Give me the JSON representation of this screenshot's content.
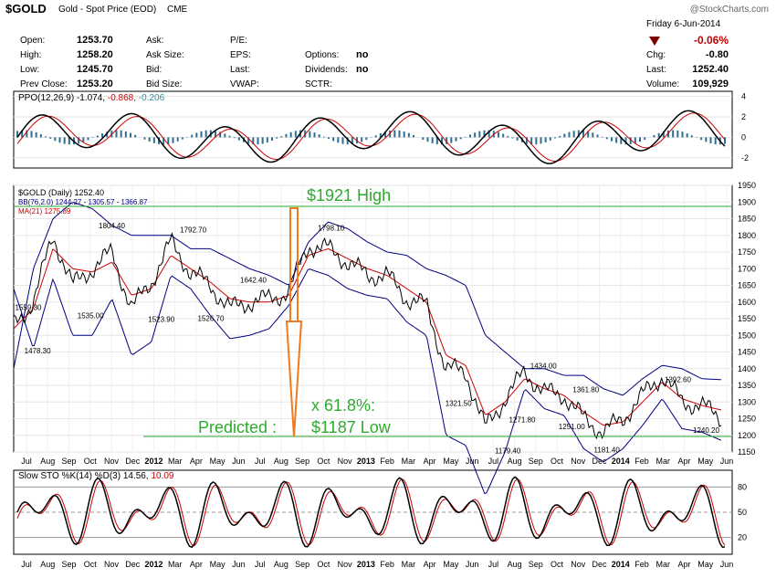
{
  "header": {
    "symbol": "$GOLD",
    "description": "Gold - Spot Price (EOD)",
    "exchange": "CME",
    "watermark": "@StockCharts.com",
    "date": "Friday  6-Jun-2014",
    "change_pct": "-0.06%",
    "quote": {
      "open_label": "Open:",
      "open": "1253.70",
      "high_label": "High:",
      "high": "1258.20",
      "low_label": "Low:",
      "low": "1245.70",
      "prev_close_label": "Prev Close:",
      "prev_close": "1253.20",
      "ask_label": "Ask:",
      "ask_size_label": "Ask Size:",
      "bid_label": "Bid:",
      "bid_size_label": "Bid Size:",
      "pe_label": "P/E:",
      "eps_label": "EPS:",
      "last_label_mid": "Last:",
      "vwap_label": "VWAP:",
      "options_label": "Options:",
      "options": "no",
      "dividends_label": "Dividends:",
      "dividends": "no",
      "sctr_label": "SCTR:",
      "chg_label": "Chg:",
      "chg": "-0.80",
      "last_label": "Last:",
      "last": "1252.40",
      "volume_label": "Volume:",
      "volume": "109,929"
    }
  },
  "colors": {
    "price": "#000000",
    "ma": "#cc0000",
    "bb": "#000080",
    "annotation": "#2eaa2e",
    "arrow": "#f07a20",
    "histogram": "#2e6e8e"
  },
  "ppo_legend": {
    "name": "PPO(12,26,9)",
    "v1": "-1.074,",
    "v2": "-0.868,",
    "v3": "-0.206"
  },
  "price_legend": {
    "l1": "$GOLD (Daily) 1252.40",
    "l2": "BB(76,2.0) 1244.27 - 1305.57 - 1366.87",
    "l3": "MA(21) 1275.89"
  },
  "sto_legend": {
    "name": "Slow STO %K(14) %D(3) 14.56,",
    "v": "10.09"
  },
  "annotations": {
    "high": "$1921 High",
    "ratio": "x 61.8%:",
    "predicted": "Predicted :",
    "low": "$1187 Low"
  },
  "x_axis_labels": [
    "Jul",
    "Aug",
    "Sep",
    "Oct",
    "Nov",
    "Dec",
    "2012",
    "Mar",
    "Apr",
    "May",
    "Jun",
    "Jul",
    "Aug",
    "Sep",
    "Oct",
    "Nov",
    "2013",
    "Feb",
    "Mar",
    "Apr",
    "May",
    "Jun",
    "Jul",
    "Aug",
    "Sep",
    "Oct",
    "Nov",
    "Dec",
    "2014",
    "Feb",
    "Mar",
    "Apr",
    "May",
    "Jun"
  ],
  "chart_data": [
    {
      "type": "line",
      "title": "$GOLD (Daily) 1252.40",
      "ylim": [
        1150,
        1950
      ],
      "y_ticks": [
        1150,
        1200,
        1250,
        1300,
        1350,
        1400,
        1450,
        1500,
        1550,
        1600,
        1650,
        1700,
        1750,
        1800,
        1850,
        1900,
        1950
      ],
      "series": [
        {
          "name": "$GOLD",
          "x": [
            "2011-06",
            "2011-07",
            "2011-08",
            "2011-09",
            "2011-10",
            "2011-11",
            "2011-12",
            "2012-01",
            "2012-02",
            "2012-03",
            "2012-04",
            "2012-05",
            "2012-06",
            "2012-07",
            "2012-08",
            "2012-09",
            "2012-10",
            "2012-11",
            "2012-12",
            "2013-01",
            "2013-02",
            "2013-03",
            "2013-04",
            "2013-05",
            "2013-06",
            "2013-07",
            "2013-08",
            "2013-09",
            "2013-10",
            "2013-11",
            "2013-12",
            "2014-01",
            "2014-02",
            "2014-03",
            "2014-04",
            "2014-05",
            "2014-06"
          ],
          "values": [
            1530,
            1600,
            1800,
            1650,
            1700,
            1750,
            1580,
            1660,
            1780,
            1690,
            1650,
            1580,
            1600,
            1610,
            1630,
            1770,
            1760,
            1720,
            1680,
            1680,
            1610,
            1590,
            1400,
            1390,
            1220,
            1310,
            1390,
            1330,
            1320,
            1250,
            1210,
            1250,
            1320,
            1380,
            1300,
            1290,
            1252
          ]
        },
        {
          "name": "BB(76,2.0)",
          "values": [
            1400,
            1700,
            1850,
            1900,
            1880,
            1830,
            1800,
            1800,
            1800,
            1760,
            1760,
            1730,
            1700,
            1680,
            1650,
            1780,
            1840,
            1820,
            1780,
            1750,
            1740,
            1700,
            1680,
            1650,
            1500,
            1450,
            1400,
            1400,
            1380,
            1380,
            1340,
            1320,
            1370,
            1410,
            1400,
            1370,
            1367
          ]
        },
        {
          "name": "MA(21)",
          "values": [
            1520,
            1580,
            1760,
            1700,
            1690,
            1720,
            1620,
            1640,
            1740,
            1700,
            1660,
            1610,
            1600,
            1600,
            1620,
            1740,
            1760,
            1730,
            1700,
            1680,
            1640,
            1600,
            1440,
            1410,
            1260,
            1300,
            1370,
            1340,
            1320,
            1270,
            1230,
            1240,
            1300,
            1360,
            1310,
            1290,
            1276
          ]
        }
      ],
      "annotations": [
        {
          "text": "1559.30"
        },
        {
          "text": "1478.30"
        },
        {
          "text": "1535.00"
        },
        {
          "text": "1804.40"
        },
        {
          "text": "1523.90"
        },
        {
          "text": "1792.70"
        },
        {
          "text": "1526.70"
        },
        {
          "text": "1642.40"
        },
        {
          "text": "1798.10"
        },
        {
          "text": "1321.50"
        },
        {
          "text": "1434.00"
        },
        {
          "text": "1271.80"
        },
        {
          "text": "1361.80"
        },
        {
          "text": "1251.00"
        },
        {
          "text": "1179.40"
        },
        {
          "text": "1181.40"
        },
        {
          "text": "1392.60"
        },
        {
          "text": "1240.20"
        }
      ]
    },
    {
      "type": "line",
      "title": "PPO(12,26,9)",
      "ylim": [
        -3,
        4.5
      ],
      "y_ticks": [
        -2,
        0,
        2,
        4
      ]
    },
    {
      "type": "line",
      "title": "Slow STO %K(14) %D(3)",
      "ylim": [
        0,
        100
      ],
      "y_ticks": [
        20,
        50,
        80
      ]
    }
  ]
}
